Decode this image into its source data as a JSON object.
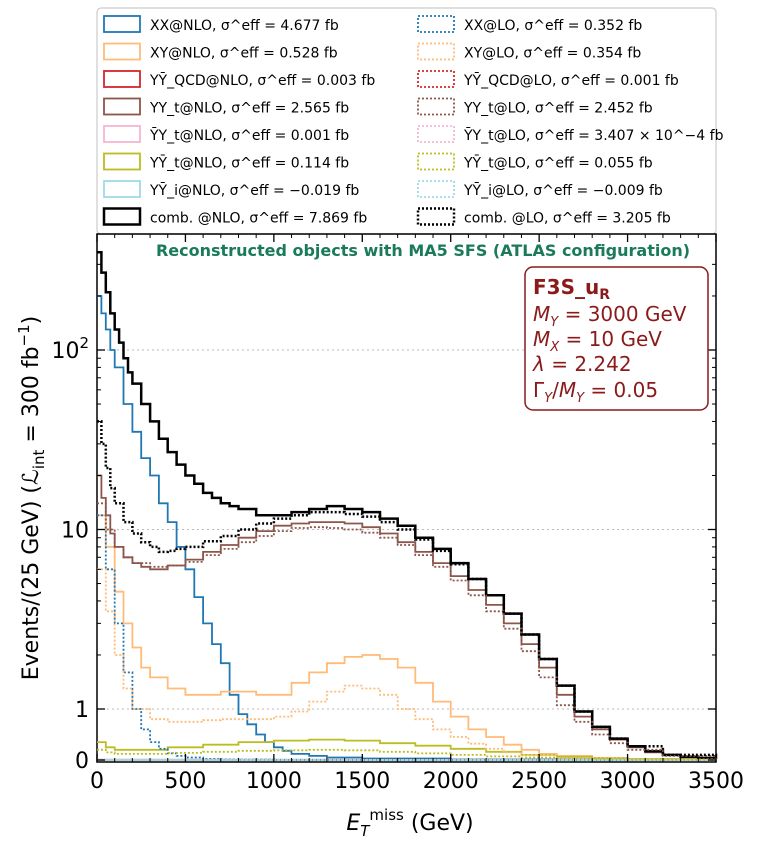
{
  "chart_data": {
    "type": "line",
    "xlabel": "E_T^miss (GeV)",
    "ylabel": "Events/(25 GeV) (L_int = 300 fb^-1)",
    "xlim": [
      0,
      3500
    ],
    "ylim": [
      0,
      400
    ],
    "yscale": "symlog",
    "xticks": [
      "0",
      "500",
      "1000",
      "1500",
      "2000",
      "2500",
      "3000",
      "3500"
    ],
    "yticks": [
      "0",
      "1",
      "10",
      "10^2"
    ],
    "grid": "horizontal dotted",
    "legend_placement": "top, above plot, two columns",
    "annotation_title": "Reconstructed objects with MA5 SFS (ATLAS configuration)",
    "box": {
      "model": "F3S_u_R",
      "lines": [
        "M_Y = 3000 GeV",
        "M_X = 10 GeV",
        "λ = 2.242",
        "Γ_Y/M_Y = 0.05"
      ]
    },
    "series": [
      {
        "name": "XX@NLO",
        "sigma": "σ^eff = 4.677 fb",
        "color": "#1f77b4",
        "style": "solid",
        "x": [
          0,
          25,
          50,
          75,
          100,
          150,
          200,
          250,
          300,
          350,
          400,
          450,
          500,
          550,
          600,
          650,
          700,
          750,
          800,
          850,
          900,
          950,
          1000,
          1050,
          1100,
          1200,
          1300,
          1500,
          2000,
          3500
        ],
        "y": [
          200,
          160,
          130,
          100,
          80,
          50,
          35,
          25,
          20,
          14,
          11,
          8,
          6,
          4.2,
          3,
          2.3,
          1.8,
          1.2,
          0.9,
          0.7,
          0.5,
          0.35,
          0.25,
          0.18,
          0.12,
          0.08,
          0.05,
          0.03,
          0.01,
          0.005
        ]
      },
      {
        "name": "XY@NLO",
        "sigma": "σ^eff = 0.528 fb",
        "color": "#ffbb78",
        "style": "solid",
        "x": [
          0,
          50,
          100,
          150,
          200,
          250,
          300,
          400,
          500,
          600,
          700,
          800,
          900,
          1000,
          1100,
          1200,
          1300,
          1400,
          1500,
          1600,
          1700,
          1800,
          1900,
          2000,
          2100,
          2200,
          2300,
          2400,
          2500,
          2600,
          2800,
          3000,
          3500
        ],
        "y": [
          12,
          8,
          4.5,
          3,
          2.2,
          1.7,
          1.5,
          1.3,
          1.2,
          1.2,
          1.25,
          1.25,
          1.2,
          1.2,
          1.4,
          1.6,
          1.8,
          1.95,
          2.0,
          1.9,
          1.7,
          1.4,
          1.1,
          0.85,
          0.6,
          0.45,
          0.3,
          0.2,
          0.12,
          0.08,
          0.04,
          0.02,
          0.01
        ]
      },
      {
        "name": "YȲ_QCD@NLO",
        "sigma": "σ^eff = 0.003 fb",
        "color": "#d62728",
        "style": "solid",
        "x": [
          0,
          3500
        ],
        "y": [
          0.003,
          0.003
        ]
      },
      {
        "name": "YY_t@NLO",
        "sigma": "σ^eff = 2.565 fb",
        "color": "#8c564b",
        "style": "solid",
        "x": [
          0,
          25,
          50,
          75,
          100,
          150,
          200,
          250,
          300,
          350,
          400,
          500,
          600,
          700,
          800,
          900,
          1000,
          1100,
          1200,
          1300,
          1400,
          1500,
          1600,
          1700,
          1800,
          1900,
          2000,
          2100,
          2200,
          2300,
          2400,
          2500,
          2600,
          2700,
          2800,
          2900,
          3000,
          3100,
          3200,
          3300,
          3400,
          3500
        ],
        "y": [
          20,
          15,
          12,
          9.5,
          8,
          7,
          6.5,
          6.2,
          6,
          6,
          6.3,
          6.8,
          7.5,
          8.2,
          9,
          9.8,
          10.5,
          10.8,
          11,
          11,
          10.8,
          10.3,
          9.5,
          8.5,
          7.5,
          6.5,
          5.5,
          4.6,
          3.8,
          3,
          2.3,
          1.7,
          1.2,
          0.85,
          0.6,
          0.4,
          0.25,
          0.15,
          0.1,
          0.06,
          0.04,
          0.02
        ]
      },
      {
        "name": "ȲY_t@NLO",
        "sigma": "σ^eff = 0.001 fb",
        "color": "#f7b6d2",
        "style": "solid",
        "x": [
          0,
          3500
        ],
        "y": [
          0.002,
          0.001
        ]
      },
      {
        "name": "YȲ_t@NLO",
        "sigma": "σ^eff = 0.114 fb",
        "color": "#bcbd22",
        "style": "solid",
        "x": [
          0,
          50,
          100,
          200,
          400,
          600,
          800,
          1000,
          1200,
          1400,
          1600,
          1800,
          2000,
          2200,
          2400,
          2600,
          2800,
          3000,
          3500
        ],
        "y": [
          0.35,
          0.25,
          0.2,
          0.2,
          0.25,
          0.3,
          0.35,
          0.38,
          0.4,
          0.38,
          0.33,
          0.28,
          0.22,
          0.16,
          0.1,
          0.06,
          0.04,
          0.02,
          0.01
        ]
      },
      {
        "name": "YȲ_i@NLO",
        "sigma": "σ^eff = −0.019 fb",
        "color": "#9edae5",
        "style": "solid",
        "x": [
          0,
          3500
        ],
        "y": [
          0.0,
          0.0
        ]
      },
      {
        "name": "comb. @NLO",
        "sigma": "σ^eff = 7.869 fb",
        "color": "#000000",
        "style": "solid",
        "x": [
          0,
          25,
          50,
          75,
          100,
          125,
          150,
          175,
          200,
          250,
          300,
          350,
          400,
          450,
          500,
          550,
          600,
          650,
          700,
          750,
          800,
          900,
          1000,
          1100,
          1200,
          1300,
          1400,
          1500,
          1600,
          1700,
          1800,
          1900,
          2000,
          2100,
          2200,
          2300,
          2400,
          2500,
          2600,
          2700,
          2800,
          2900,
          3000,
          3100,
          3200,
          3300,
          3400,
          3500
        ],
        "y": [
          350,
          270,
          210,
          160,
          130,
          110,
          90,
          75,
          65,
          50,
          40,
          32,
          27,
          23,
          20,
          18,
          16,
          15,
          14,
          13.5,
          13,
          12,
          12,
          12.5,
          13,
          13.5,
          13,
          12.5,
          11.5,
          10.5,
          9,
          7.8,
          6.5,
          5.3,
          4.3,
          3.4,
          2.6,
          1.9,
          1.35,
          0.95,
          0.65,
          0.42,
          0.27,
          0.17,
          0.1,
          0.06,
          0.04,
          0.02
        ]
      },
      {
        "name": "XX@LO",
        "sigma": "σ^eff = 0.352 fb",
        "color": "#1f77b4",
        "style": "dotted",
        "x": [
          0,
          50,
          100,
          150,
          200,
          250,
          300,
          350,
          400,
          450,
          500,
          600,
          700,
          800,
          1000,
          3500
        ],
        "y": [
          12,
          6,
          3,
          1.6,
          1,
          0.6,
          0.35,
          0.22,
          0.13,
          0.08,
          0.05,
          0.02,
          0.01,
          0.005,
          0.002,
          0.0
        ]
      },
      {
        "name": "XY@LO",
        "sigma": "σ^eff = 0.354 fb",
        "color": "#ffbb78",
        "style": "dotted",
        "x": [
          0,
          50,
          100,
          150,
          200,
          300,
          400,
          500,
          600,
          700,
          800,
          900,
          1000,
          1100,
          1200,
          1300,
          1400,
          1500,
          1600,
          1700,
          1800,
          1900,
          2000,
          2100,
          2200,
          2300,
          2400,
          2600,
          3000,
          3500
        ],
        "y": [
          6,
          3.5,
          2,
          1.3,
          1,
          0.8,
          0.75,
          0.75,
          0.78,
          0.8,
          0.8,
          0.8,
          0.85,
          0.95,
          1.1,
          1.25,
          1.35,
          1.3,
          1.2,
          1.0,
          0.8,
          0.6,
          0.45,
          0.32,
          0.22,
          0.15,
          0.1,
          0.04,
          0.01,
          0.005
        ]
      },
      {
        "name": "YȲ_QCD@LO",
        "sigma": "σ^eff = 0.001 fb",
        "color": "#d62728",
        "style": "dotted",
        "x": [
          0,
          3500
        ],
        "y": [
          0.001,
          0.001
        ]
      },
      {
        "name": "YY_t@LO",
        "sigma": "σ^eff = 2.452 fb",
        "color": "#8c564b",
        "style": "dotted",
        "x": [
          0,
          50,
          100,
          150,
          200,
          300,
          400,
          500,
          600,
          700,
          800,
          900,
          1000,
          1100,
          1200,
          1300,
          1400,
          1500,
          1600,
          1700,
          1800,
          1900,
          2000,
          2100,
          2200,
          2300,
          2400,
          2500,
          2600,
          2700,
          2800,
          2900,
          3000,
          3200,
          3500
        ],
        "y": [
          14,
          10,
          8,
          7,
          6.5,
          6.2,
          6.3,
          6.6,
          7.2,
          7.8,
          8.5,
          9.2,
          9.8,
          10.2,
          10.3,
          10.2,
          10,
          9.6,
          9,
          8.2,
          7.2,
          6.2,
          5.2,
          4.3,
          3.5,
          2.8,
          2.1,
          1.5,
          1.05,
          0.75,
          0.5,
          0.33,
          0.2,
          0.08,
          0.02
        ]
      },
      {
        "name": "ȲY_t@LO",
        "sigma": "σ^eff = 3.407 × 10^−4 fb",
        "color": "#f7b6d2",
        "style": "dotted",
        "x": [
          0,
          3500
        ],
        "y": [
          0.0005,
          0.0003
        ]
      },
      {
        "name": "YȲ_t@LO",
        "sigma": "σ^eff = 0.055 fb",
        "color": "#bcbd22",
        "style": "dotted",
        "x": [
          0,
          50,
          100,
          200,
          400,
          600,
          800,
          1000,
          1200,
          1400,
          1600,
          1800,
          2000,
          2200,
          2400,
          2600,
          2800,
          3000,
          3500
        ],
        "y": [
          0.2,
          0.15,
          0.12,
          0.12,
          0.14,
          0.16,
          0.18,
          0.19,
          0.2,
          0.19,
          0.16,
          0.13,
          0.1,
          0.07,
          0.05,
          0.03,
          0.02,
          0.01,
          0.005
        ]
      },
      {
        "name": "YȲ_i@LO",
        "sigma": "σ^eff = −0.009 fb",
        "color": "#9edae5",
        "style": "dotted",
        "x": [
          0,
          3500
        ],
        "y": [
          0.0,
          0.0
        ]
      },
      {
        "name": "comb. @LO",
        "sigma": "σ^eff = 3.205 fb",
        "color": "#000000",
        "style": "dotted",
        "x": [
          0,
          25,
          50,
          75,
          100,
          150,
          200,
          250,
          300,
          350,
          400,
          450,
          500,
          600,
          700,
          800,
          900,
          1000,
          1100,
          1200,
          1300,
          1400,
          1500,
          1600,
          1700,
          1800,
          1900,
          2000,
          2100,
          2200,
          2300,
          2400,
          2500,
          2600,
          2700,
          2800,
          2900,
          3000,
          3200,
          3500
        ],
        "y": [
          40,
          30,
          22,
          17,
          14,
          11,
          9.5,
          8.5,
          8,
          7.5,
          7.6,
          7.8,
          8,
          8.6,
          9.2,
          10,
          10.8,
          11.5,
          12,
          12.5,
          12.5,
          12.2,
          11.8,
          11,
          10,
          8.8,
          7.6,
          6.4,
          5.3,
          4.3,
          3.4,
          2.6,
          1.9,
          1.35,
          0.95,
          0.65,
          0.42,
          0.27,
          0.1,
          0.03
        ]
      }
    ]
  }
}
